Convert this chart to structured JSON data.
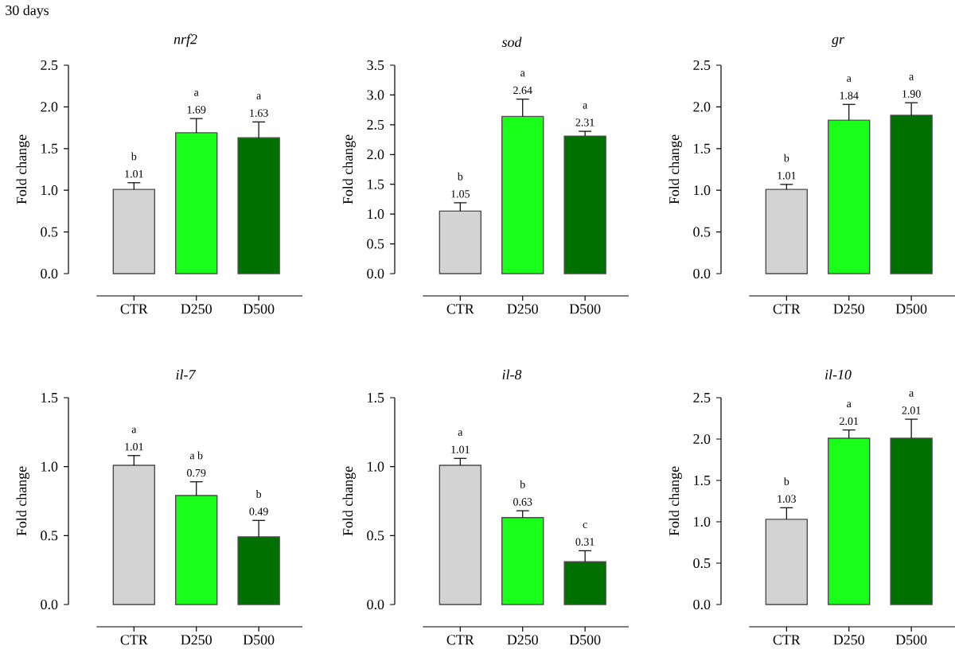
{
  "chart_data": [
    {
      "type": "bar",
      "title": "nrf2",
      "ylabel": "Fold change",
      "categories": [
        "CTR",
        "D250",
        "D500"
      ],
      "values": [
        1.01,
        1.69,
        1.63
      ],
      "errors": [
        0.08,
        0.17,
        0.19
      ],
      "value_labels": [
        "1.01",
        "1.69",
        "1.63"
      ],
      "colors": [
        "#d3d3d3",
        "#1aff1a",
        "#007000"
      ],
      "ylim": [
        0,
        2.5
      ],
      "yticks": [
        {
          "value": 0,
          "label": "0.0"
        },
        {
          "value": 0.5,
          "label": "0.5"
        },
        {
          "value": 1,
          "label": "1.0"
        },
        {
          "value": 1.5,
          "label": "1.5"
        },
        {
          "value": 2,
          "label": "2.0"
        },
        {
          "value": 2.5,
          "label": "2.5"
        }
      ],
      "grid": false,
      "annotations": [
        "30 days",
        "b",
        "a",
        "a"
      ]
    },
    {
      "type": "bar",
      "title": "sod",
      "ylabel": "Fold change",
      "categories": [
        "CTR",
        "D250",
        "D500"
      ],
      "values": [
        1.05,
        2.64,
        2.31
      ],
      "errors": [
        0.14,
        0.29,
        0.08
      ],
      "value_labels": [
        "1.05",
        "2.64",
        "2.31"
      ],
      "colors": [
        "#d3d3d3",
        "#1aff1a",
        "#007000"
      ],
      "ylim": [
        0,
        3.5
      ],
      "yticks": [
        {
          "value": 0,
          "label": "0.0"
        },
        {
          "value": 0.5,
          "label": "0.5"
        },
        {
          "value": 1,
          "label": "1.0"
        },
        {
          "value": 1.5,
          "label": "1.5"
        },
        {
          "value": 2,
          "label": "2.0"
        },
        {
          "value": 2.5,
          "label": "2.5"
        },
        {
          "value": 3,
          "label": "3.0"
        },
        {
          "value": 3.5,
          "label": "3.5"
        }
      ],
      "grid": false,
      "annotations": [
        "b",
        "a",
        "a"
      ]
    },
    {
      "type": "bar",
      "title": "gr",
      "ylabel": "Fold change",
      "categories": [
        "CTR",
        "D250",
        "D500"
      ],
      "values": [
        1.01,
        1.84,
        1.9
      ],
      "errors": [
        0.06,
        0.19,
        0.15
      ],
      "value_labels": [
        "1.01",
        "1.84",
        "1.90"
      ],
      "colors": [
        "#d3d3d3",
        "#1aff1a",
        "#007000"
      ],
      "ylim": [
        0,
        2.5
      ],
      "yticks": [
        {
          "value": 0,
          "label": "0.0"
        },
        {
          "value": 0.5,
          "label": "0.5"
        },
        {
          "value": 1,
          "label": "1.0"
        },
        {
          "value": 1.5,
          "label": "1.5"
        },
        {
          "value": 2,
          "label": "2.0"
        },
        {
          "value": 2.5,
          "label": "2.5"
        }
      ],
      "grid": false,
      "annotations": [
        "b",
        "a",
        "a"
      ]
    },
    {
      "type": "bar",
      "title": "il-7",
      "ylabel": "Fold change",
      "categories": [
        "CTR",
        "D250",
        "D500"
      ],
      "values": [
        1.01,
        0.79,
        0.49
      ],
      "errors": [
        0.07,
        0.1,
        0.12
      ],
      "value_labels": [
        "1.01",
        "0.79",
        "0.49"
      ],
      "colors": [
        "#d3d3d3",
        "#1aff1a",
        "#007000"
      ],
      "ylim": [
        0,
        1.5
      ],
      "yticks": [
        {
          "value": 0,
          "label": "0.0"
        },
        {
          "value": 0.5,
          "label": "0.5"
        },
        {
          "value": 1,
          "label": "1.0"
        },
        {
          "value": 1.5,
          "label": "1.5"
        }
      ],
      "grid": false,
      "annotations": [
        "a",
        "a b",
        "b"
      ]
    },
    {
      "type": "bar",
      "title": "il-8",
      "ylabel": "Fold change",
      "categories": [
        "CTR",
        "D250",
        "D500"
      ],
      "values": [
        1.01,
        0.63,
        0.31
      ],
      "errors": [
        0.05,
        0.05,
        0.08
      ],
      "value_labels": [
        "1.01",
        "0.63",
        "0.31"
      ],
      "colors": [
        "#d3d3d3",
        "#1aff1a",
        "#007000"
      ],
      "ylim": [
        0,
        1.5
      ],
      "yticks": [
        {
          "value": 0,
          "label": "0.0"
        },
        {
          "value": 0.5,
          "label": "0.5"
        },
        {
          "value": 1,
          "label": "1.0"
        },
        {
          "value": 1.5,
          "label": "1.5"
        }
      ],
      "grid": false,
      "annotations": [
        "a",
        "b",
        "c"
      ]
    },
    {
      "type": "bar",
      "title": "il-10",
      "ylabel": "Fold change",
      "categories": [
        "CTR",
        "D250",
        "D500"
      ],
      "values": [
        1.03,
        2.01,
        2.01
      ],
      "errors": [
        0.14,
        0.1,
        0.23
      ],
      "value_labels": [
        "1.03",
        "2.01",
        "2.01"
      ],
      "colors": [
        "#d3d3d3",
        "#1aff1a",
        "#007000"
      ],
      "ylim": [
        0,
        2.5
      ],
      "yticks": [
        {
          "value": 0,
          "label": "0.0"
        },
        {
          "value": 0.5,
          "label": "0.5"
        },
        {
          "value": 1,
          "label": "1.0"
        },
        {
          "value": 1.5,
          "label": "1.5"
        },
        {
          "value": 2,
          "label": "2.0"
        },
        {
          "value": 2.5,
          "label": "2.5"
        }
      ],
      "grid": false,
      "annotations": [
        "b",
        "a",
        "a"
      ]
    }
  ]
}
